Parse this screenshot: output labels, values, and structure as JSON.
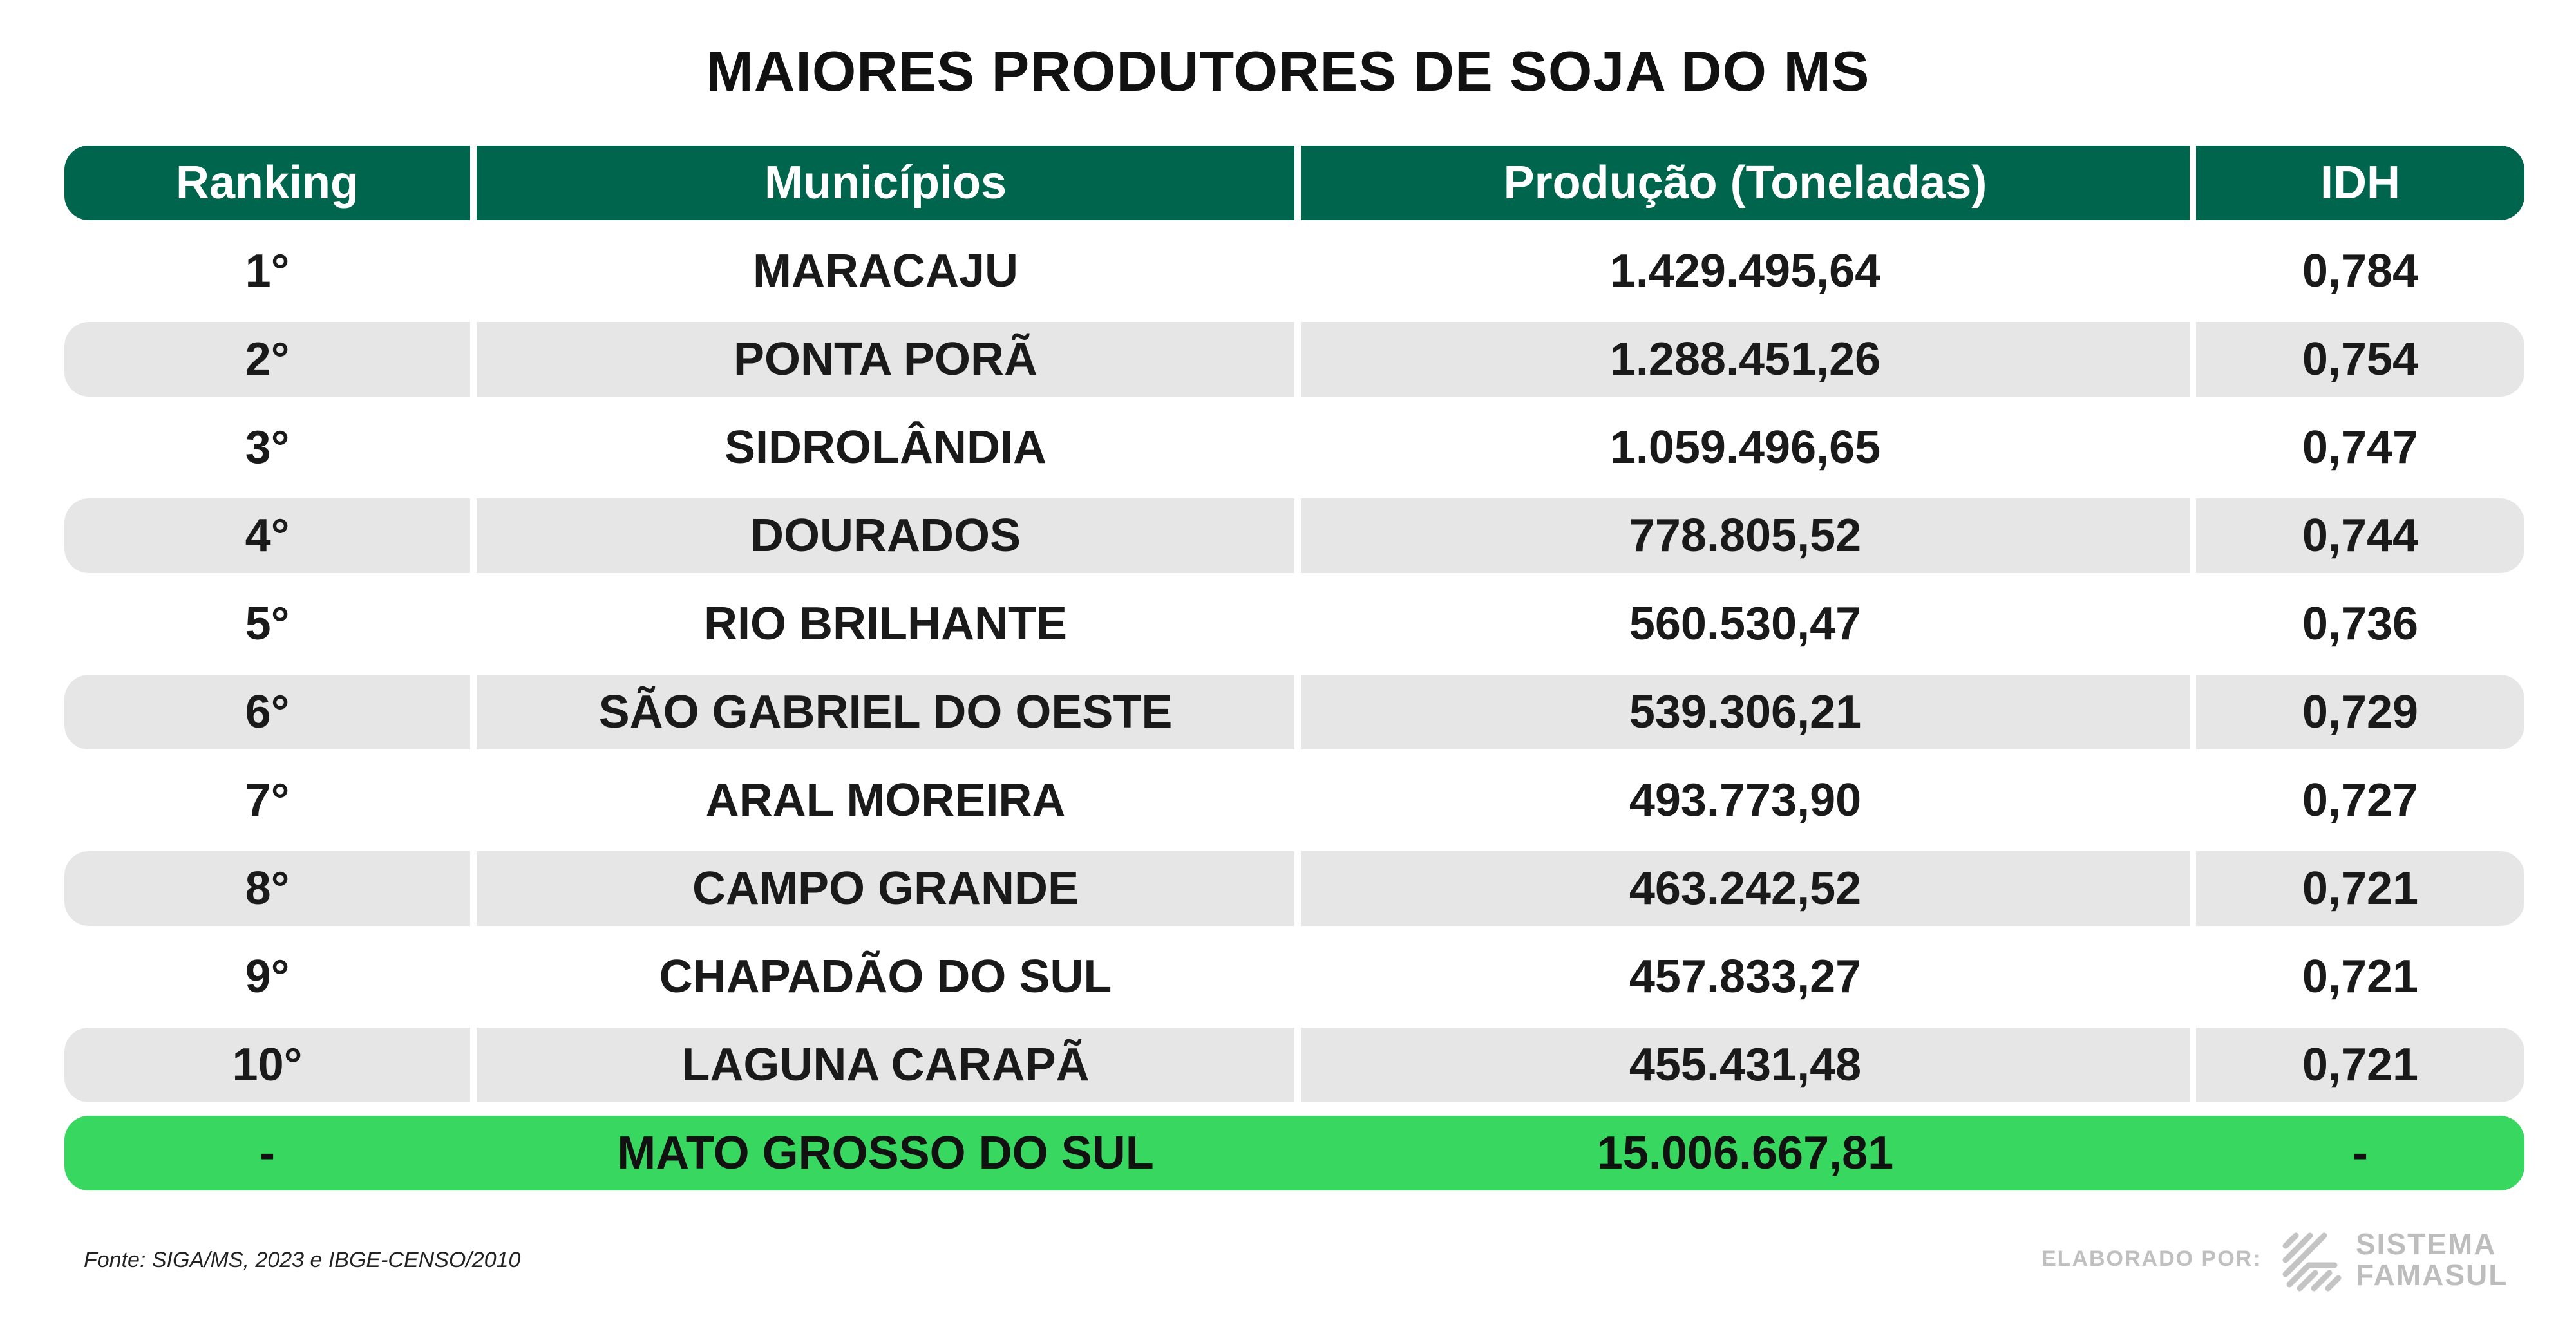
{
  "chart_data": {
    "type": "table",
    "title": "MAIORES PRODUTORES DE SOJA DO MS",
    "columns": [
      "Ranking",
      "Municípios",
      "Produção (Toneladas)",
      "IDH"
    ],
    "rows": [
      [
        "1°",
        "MARACAJU",
        "1.429.495,64",
        "0,784"
      ],
      [
        "2°",
        "PONTA PORÃ",
        "1.288.451,26",
        "0,754"
      ],
      [
        "3°",
        "SIDROLÂNDIA",
        "1.059.496,65",
        "0,747"
      ],
      [
        "4°",
        "DOURADOS",
        "778.805,52",
        "0,744"
      ],
      [
        "5°",
        "RIO BRILHANTE",
        "560.530,47",
        "0,736"
      ],
      [
        "6°",
        "SÃO GABRIEL DO OESTE",
        "539.306,21",
        "0,729"
      ],
      [
        "7°",
        "ARAL MOREIRA",
        "493.773,90",
        "0,727"
      ],
      [
        "8°",
        "CAMPO GRANDE",
        "463.242,52",
        "0,721"
      ],
      [
        "9°",
        "CHAPADÃO DO SUL",
        "457.833,27",
        "0,721"
      ],
      [
        "10°",
        "LAGUNA CARAPÃ",
        "455.431,48",
        "0,721"
      ]
    ],
    "total": [
      "-",
      "MATO GROSSO DO SUL",
      "15.006.667,81",
      "-"
    ]
  },
  "footer": {
    "source": "Fonte: SIGA/MS, 2023 e IBGE-CENSO/2010",
    "credit": "ELABORADO POR:",
    "brand_line1": "SISTEMA",
    "brand_line2": "FAMASUL",
    "logo_icon": "famasul-logo-icon"
  },
  "colors": {
    "header_green": "#00654d",
    "total_green": "#37d760",
    "row_shade": "#e6e6e6"
  }
}
